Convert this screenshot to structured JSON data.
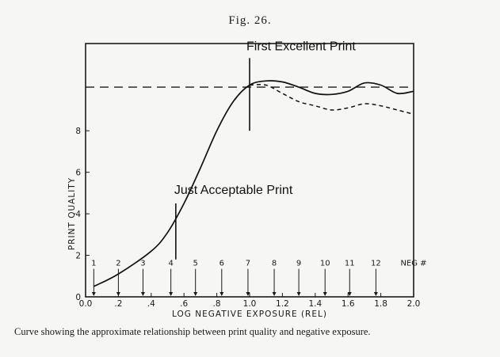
{
  "figure": {
    "title": "Fig. 26.",
    "caption": "Curve showing the approximate relationship between print quality and negative exposure."
  },
  "chart_data": {
    "type": "line",
    "xlabel": "LOG NEGATIVE EXPOSURE (REL)",
    "ylabel": "PRINT QUALITY",
    "xlim": [
      0.0,
      2.0
    ],
    "ylim": [
      0,
      12.2
    ],
    "x_ticks": [
      0.0,
      0.2,
      0.4,
      0.6,
      0.8,
      1.0,
      1.2,
      1.4,
      1.6,
      1.8,
      2.0
    ],
    "x_tick_labels": [
      "0.0",
      ".2",
      ".4",
      ".6",
      ".8",
      "1.0",
      "1.2",
      "1.4",
      "1.6",
      "1.8",
      "2.0"
    ],
    "y_ticks": [
      0,
      2,
      4,
      6,
      8
    ],
    "y_tick_labels": [
      "0",
      "2",
      "4",
      "6",
      "8"
    ],
    "grid": false,
    "series": [
      {
        "style": "solid",
        "x": [
          0.05,
          0.2,
          0.4,
          0.5,
          0.6,
          0.7,
          0.8,
          0.9,
          1.0,
          1.1,
          1.2,
          1.3,
          1.4,
          1.5,
          1.6,
          1.7,
          1.8,
          1.9,
          2.0
        ],
        "y": [
          0.5,
          1.1,
          2.2,
          3.1,
          4.5,
          6.2,
          8.0,
          9.4,
          10.2,
          10.4,
          10.35,
          10.1,
          9.8,
          9.75,
          9.9,
          10.3,
          10.2,
          9.8,
          9.9
        ]
      },
      {
        "style": "dashed",
        "x": [
          1.0,
          1.1,
          1.2,
          1.3,
          1.4,
          1.5,
          1.6,
          1.7,
          1.8,
          1.9,
          2.0
        ],
        "y": [
          10.2,
          10.2,
          9.8,
          9.4,
          9.2,
          9.0,
          9.1,
          9.3,
          9.2,
          9.0,
          8.8
        ]
      }
    ],
    "reference_lines": [
      {
        "type": "horizontal",
        "y": 10.1,
        "style": "dashed"
      }
    ],
    "markers": [
      {
        "label": "Just Acceptable Print",
        "x": 0.55,
        "y_from": 1.8,
        "y_to": 4.5
      },
      {
        "label": "First Excellent Print",
        "x": 1.0,
        "y_from": 8.0,
        "y_to": 11.5
      }
    ],
    "negatives": {
      "labels": [
        "1",
        "2",
        "3",
        "4",
        "5",
        "6",
        "7",
        "8",
        "9",
        "10",
        "11",
        "12",
        "NEG #"
      ],
      "x": [
        0.05,
        0.2,
        0.35,
        0.52,
        0.67,
        0.83,
        0.99,
        1.15,
        1.3,
        1.46,
        1.61,
        1.77,
        1.92
      ]
    }
  }
}
